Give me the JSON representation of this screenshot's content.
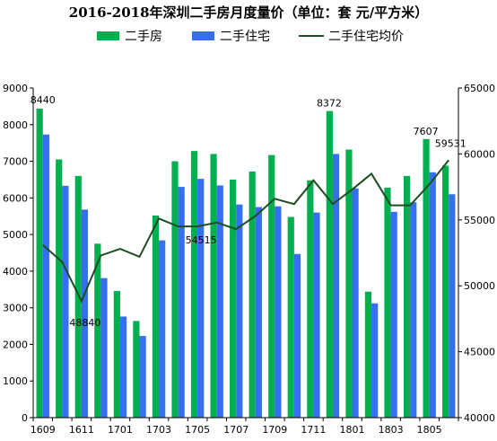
{
  "chart_data": {
    "type": "bar",
    "title": "2016-2018年深圳二手房月度量价（单位：套 元/平方米）",
    "categories": [
      "1609",
      "1610",
      "1611",
      "1612",
      "1701",
      "1702",
      "1703",
      "1704",
      "1705",
      "1706",
      "1707",
      "1708",
      "1709",
      "1710",
      "1711",
      "1712",
      "1801",
      "1802",
      "1803",
      "1804",
      "1805",
      "1806"
    ],
    "x_tick_labels": [
      "1609",
      "1611",
      "1701",
      "1703",
      "1705",
      "1707",
      "1709",
      "1711",
      "1801",
      "1803",
      "1805"
    ],
    "series": [
      {
        "name": "二手房",
        "kind": "bar",
        "axis": "left",
        "color": "#00b050",
        "values": [
          8440,
          7050,
          6600,
          4750,
          3460,
          2640,
          5520,
          7000,
          7280,
          7200,
          6500,
          6720,
          7170,
          5480,
          6480,
          8372,
          7320,
          3440,
          6280,
          6600,
          7607,
          6880
        ]
      },
      {
        "name": "二手住宅",
        "kind": "bar",
        "axis": "left",
        "color": "#3670f0",
        "values": [
          7730,
          6330,
          5680,
          3810,
          2760,
          2230,
          4840,
          6300,
          6520,
          6340,
          5820,
          5750,
          5770,
          4470,
          5600,
          7200,
          6260,
          3120,
          5620,
          5880,
          6700,
          6100
        ]
      },
      {
        "name": "二手住宅均价",
        "kind": "line",
        "axis": "right",
        "color": "#1e4d20",
        "values": [
          53100,
          51800,
          48840,
          52300,
          52800,
          52200,
          55100,
          54500,
          54500,
          54800,
          54300,
          55300,
          56600,
          56200,
          58000,
          56200,
          57300,
          58500,
          56100,
          56100,
          57700,
          59531
        ]
      }
    ],
    "ylim_left": [
      0,
      9000
    ],
    "yticks_left": [
      "0",
      "1000",
      "2000",
      "3000",
      "4000",
      "5000",
      "6000",
      "7000",
      "8000",
      "9000"
    ],
    "ylim_right": [
      40000,
      65000
    ],
    "yticks_right": [
      "40000",
      "45000",
      "50000",
      "55000",
      "60000",
      "65000"
    ],
    "annotations": [
      {
        "text": "8440",
        "series": 0,
        "index": 0
      },
      {
        "text": "8372",
        "series": 0,
        "index": 15
      },
      {
        "text": "7607",
        "series": 0,
        "index": 20
      },
      {
        "text": "48840",
        "series": 2,
        "index": 2
      },
      {
        "text": "54515",
        "series": 2,
        "index": 8
      },
      {
        "text": "59531",
        "series": 2,
        "index": 21
      }
    ],
    "legend_position": "top-center",
    "grid": false
  }
}
